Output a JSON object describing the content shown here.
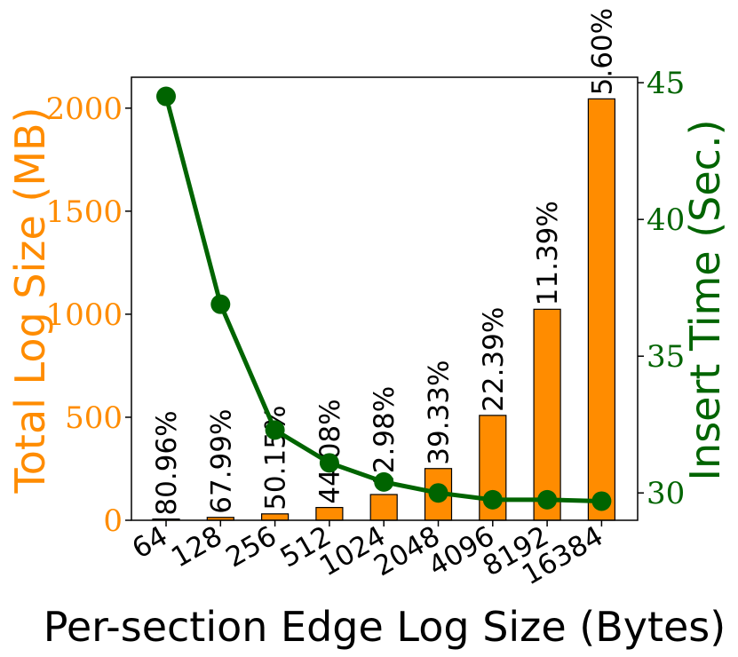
{
  "chart_data": {
    "type": "bar",
    "xlabel": "Per-section Edge Log Size (Bytes)",
    "ylabel": "Total Log Size (MB)",
    "y2label": "Insert Time (Sec.)",
    "categories": [
      "64",
      "128",
      "256",
      "512",
      "1024",
      "2048",
      "4096",
      "8192",
      "16384"
    ],
    "ylim": [
      0,
      2150
    ],
    "y_ticks": [
      0,
      500,
      1000,
      1500,
      2000
    ],
    "y2lim": [
      29,
      45.2
    ],
    "y2_ticks": [
      30,
      35,
      40,
      45
    ],
    "grid": false,
    "series": [
      {
        "type": "bar",
        "axis": "left",
        "color": "#ff8c00",
        "values": [
          6,
          14,
          31,
          62,
          125,
          251,
          509,
          1024,
          2045
        ],
        "labels": [
          "80.96%",
          "67.99%",
          "50.15%",
          "44.08%",
          "42.98%",
          "39.33%",
          "22.39%",
          "11.39%",
          "5.60%"
        ]
      },
      {
        "type": "line",
        "axis": "right",
        "color": "#006400",
        "marker": "circle",
        "values": [
          44.5,
          36.9,
          32.3,
          31.1,
          30.4,
          30.0,
          29.75,
          29.75,
          29.7
        ]
      }
    ],
    "colors": {
      "left_axis": "#ff8c00",
      "right_axis": "#006400",
      "bar_edge": "#000000",
      "label": "#000000"
    }
  }
}
